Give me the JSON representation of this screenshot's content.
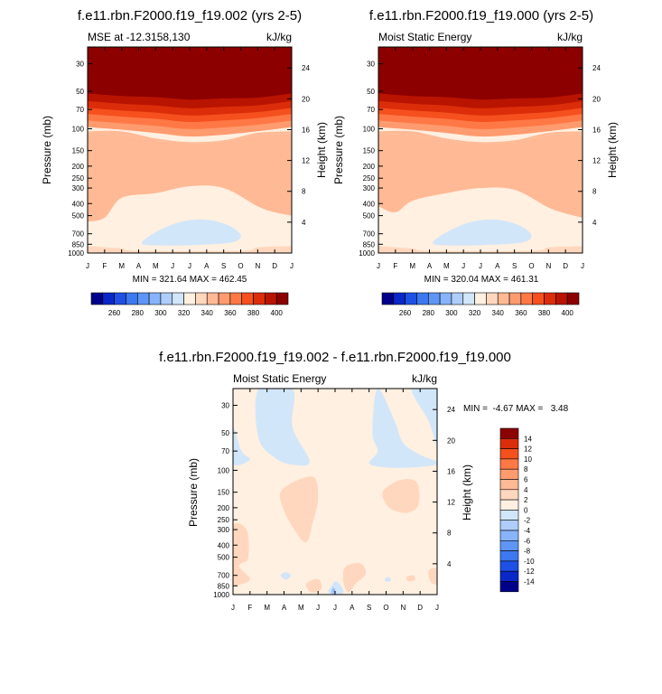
{
  "months": [
    "J",
    "F",
    "M",
    "A",
    "M",
    "J",
    "J",
    "A",
    "S",
    "O",
    "N",
    "D",
    "J"
  ],
  "chart_data": [
    {
      "type": "contour",
      "title": "f.e11.rbn.F2000.f19_f19.002 (yrs 2-5)",
      "left_label": "MSE at -12.3158,130",
      "right_label": "kJ/kg",
      "ylabel": "Pressure (mb)",
      "ylabel_right": "Height (km)",
      "p_ticks": [
        30,
        50,
        70,
        100,
        150,
        200,
        250,
        300,
        400,
        500,
        700,
        850,
        1000
      ],
      "p_tick_labels": [
        "30",
        "50",
        "70",
        "100",
        "150",
        "200",
        "250",
        "300",
        "400",
        "500",
        "700",
        "850",
        "1000"
      ],
      "height_ticks": [
        24,
        20,
        16,
        12,
        8,
        4
      ],
      "height_tick_labels": [
        "24",
        "20",
        "16",
        "12",
        "8",
        "4"
      ],
      "ylim": [
        1000,
        22
      ],
      "stats": "MIN = 321.64 MAX = 462.45",
      "min": 321.64,
      "max": 462.45
    },
    {
      "type": "contour",
      "title": "f.e11.rbn.F2000.f19_f19.000 (yrs 2-5)",
      "left_label": "Moist Static Energy",
      "right_label": "kJ/kg",
      "ylabel": "Pressure (mb)",
      "ylabel_right": "Height (km)",
      "p_ticks": [
        30,
        50,
        70,
        100,
        150,
        200,
        250,
        300,
        400,
        500,
        700,
        850,
        1000
      ],
      "p_tick_labels": [
        "30",
        "50",
        "70",
        "100",
        "150",
        "200",
        "250",
        "300",
        "400",
        "500",
        "700",
        "850",
        "1000"
      ],
      "height_ticks": [
        24,
        20,
        16,
        12,
        8,
        4
      ],
      "height_tick_labels": [
        "24",
        "20",
        "16",
        "12",
        "8",
        "4"
      ],
      "ylim": [
        1000,
        22
      ],
      "stats": "MIN = 320.04 MAX = 461.31",
      "min": 320.04,
      "max": 461.31
    },
    {
      "type": "contour",
      "title": "f.e11.rbn.F2000.f19_f19.002 - f.e11.rbn.F2000.f19_f19.000",
      "left_label": "Moist Static Energy",
      "right_label": "kJ/kg",
      "ylabel": "Pressure (mb)",
      "ylabel_right": "Height (km)",
      "p_ticks": [
        30,
        50,
        70,
        100,
        150,
        200,
        250,
        300,
        400,
        500,
        700,
        850,
        1000
      ],
      "p_tick_labels": [
        "30",
        "50",
        "70",
        "100",
        "150",
        "200",
        "250",
        "300",
        "400",
        "500",
        "700",
        "850",
        "1000"
      ],
      "height_ticks": [
        24,
        20,
        16,
        12,
        8,
        4
      ],
      "height_tick_labels": [
        "24",
        "20",
        "16",
        "12",
        "8",
        "4"
      ],
      "ylim": [
        1000,
        22
      ],
      "stats": "MIN =  -4.67 MAX =   3.48",
      "min": -4.67,
      "max": 3.48
    }
  ],
  "colorbar_abs": {
    "levels": [
      250,
      260,
      270,
      280,
      290,
      300,
      310,
      320,
      330,
      340,
      350,
      360,
      370,
      380,
      390,
      400
    ],
    "tick_labels": [
      "260",
      "280",
      "300",
      "320",
      "340",
      "360",
      "380",
      "400"
    ],
    "colors": [
      "#00008a",
      "#0a28c8",
      "#1e50e6",
      "#3c78f0",
      "#5f96f5",
      "#87b4fa",
      "#aecdfa",
      "#d2e6fa",
      "#fff0e1",
      "#ffd7be",
      "#ffb995",
      "#ff9b6e",
      "#ff7846",
      "#f5501e",
      "#dc2d0a",
      "#b91400",
      "#8c0000"
    ]
  },
  "colorbar_diff": {
    "levels": [
      -14,
      -12,
      -10,
      -8,
      -6,
      -4,
      -2,
      0,
      2,
      4,
      6,
      8,
      10,
      12,
      14
    ],
    "tick_labels": [
      "14",
      "12",
      "10",
      "8",
      "6",
      "4",
      "2",
      "0",
      "-2",
      "-4",
      "-6",
      "-8",
      "-10",
      "-12",
      "-14"
    ],
    "colors": [
      "#00008a",
      "#0a28c8",
      "#1e50e6",
      "#3c78f0",
      "#5f96f5",
      "#87b4fa",
      "#aecdfa",
      "#d2e6fa",
      "#fff0e1",
      "#ffd7be",
      "#ffb995",
      "#ff9b6e",
      "#ff7846",
      "#f5501e",
      "#dc2d0a",
      "#8c0000"
    ]
  }
}
